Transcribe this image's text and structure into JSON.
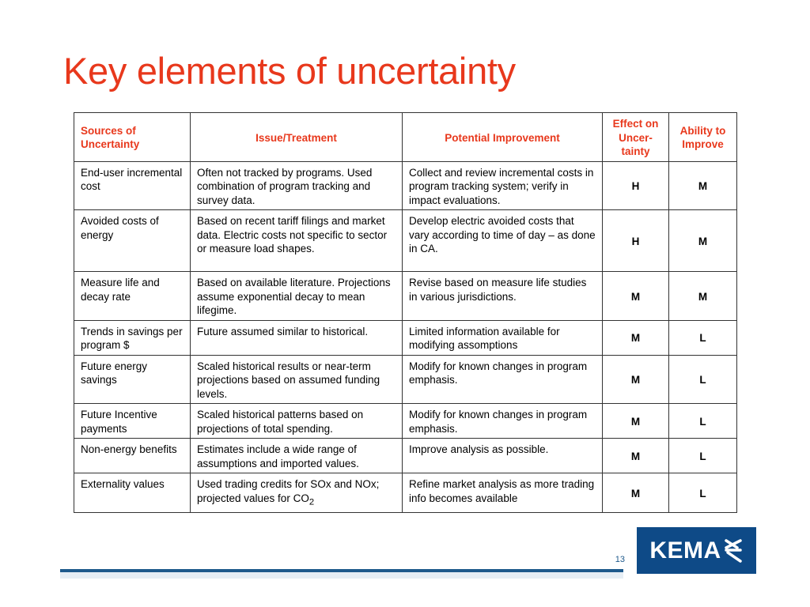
{
  "slide": {
    "title": "Key elements of uncertainty",
    "page_number": "13",
    "logo_text": "KEMA"
  },
  "table": {
    "headers": {
      "sources": "Sources of Uncertainty",
      "issue": "Issue/Treatment",
      "improvement": "Potential Improvement",
      "effect": "Effect on Uncer-tainty",
      "ability": "Ability to Improve"
    },
    "rows": [
      {
        "source": "End-user incremental cost",
        "issue": "Often not tracked by programs. Used combination of program tracking and survey data.",
        "improvement": "Collect and review incremental costs in program tracking system; verify in impact evaluations.",
        "effect": "H",
        "ability": "M"
      },
      {
        "source": "Avoided costs of energy",
        "issue": "Based on recent tariff filings and market data. Electric costs not specific to sector or measure load shapes.",
        "improvement": "Develop electric avoided costs that vary according to time of day – as done in CA.",
        "effect": "H",
        "ability": "M"
      },
      {
        "source": "Measure life and decay rate",
        "issue": "Based on available literature. Projections assume exponential decay to mean lifegime.",
        "improvement": "Revise based on measure life studies in various jurisdictions.",
        "effect": "M",
        "ability": "M"
      },
      {
        "source": "Trends in savings per program $",
        "issue": "Future assumed similar to historical.",
        "improvement": "Limited information available for modifying assomptions",
        "effect": "M",
        "ability": "L"
      },
      {
        "source": "Future energy savings",
        "issue": "Scaled historical results or near-term projections based on assumed funding levels.",
        "improvement": "Modify for known changes in program emphasis.",
        "effect": "M",
        "ability": "L"
      },
      {
        "source": "Future Incentive payments",
        "issue": "Scaled historical patterns based on projections of total spending.",
        "improvement": "Modify for known changes in program emphasis.",
        "effect": "M",
        "ability": "L"
      },
      {
        "source": "Non-energy benefits",
        "issue": "Estimates include a wide range of assumptions and imported values.",
        "improvement": "Improve analysis as possible.",
        "effect": "M",
        "ability": "L"
      },
      {
        "source": "Externality values",
        "issue_main": "Used trading credits for SOx and NOx; projected values for CO",
        "issue_sub": "2",
        "improvement": "Refine market analysis as more trading info becomes available",
        "effect": "M",
        "ability": "L"
      }
    ]
  },
  "colors": {
    "accent": "#e8381c",
    "brand": "#0e4a87"
  }
}
